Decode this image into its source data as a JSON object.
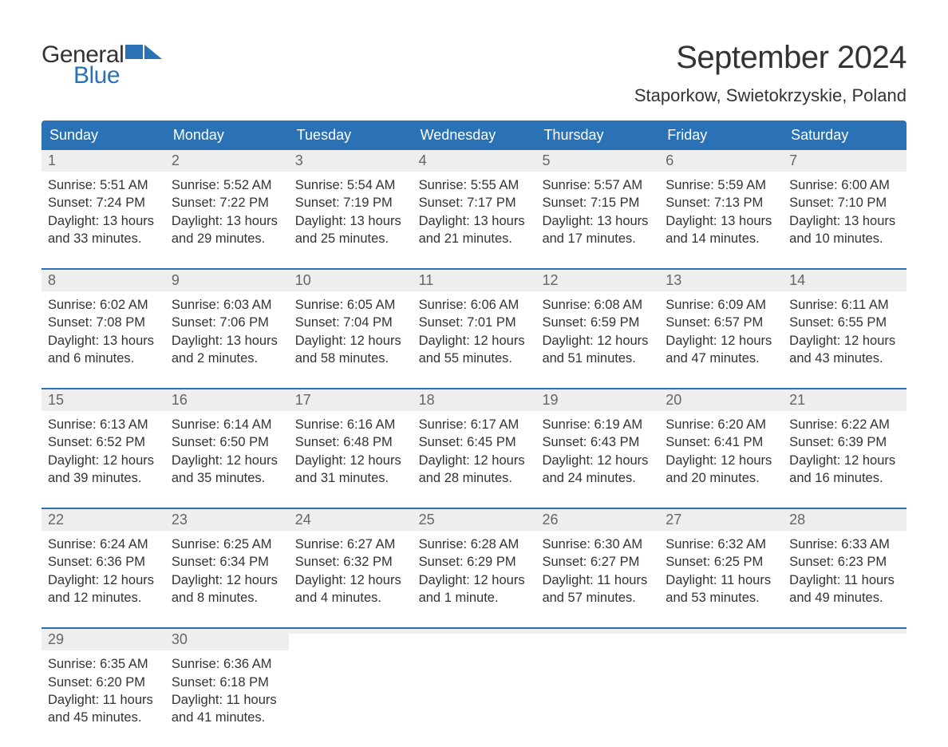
{
  "brand": {
    "line1": "General",
    "line2": "Blue",
    "accent": "#2a72b5"
  },
  "title": "September 2024",
  "location": "Staporkow, Swietokrzyskie, Poland",
  "colors": {
    "header_bg": "#2a72b5",
    "header_text": "#ffffff",
    "daynum_bg": "#eeeeee",
    "daynum_text": "#666666",
    "body_text": "#333333",
    "week_border": "#2a72b5",
    "page_bg": "#ffffff"
  },
  "typography": {
    "title_fontsize": 40,
    "location_fontsize": 22,
    "weekday_fontsize": 18,
    "daynum_fontsize": 18,
    "content_fontsize": 16.5,
    "font_family": "Arial"
  },
  "weekdays": [
    "Sunday",
    "Monday",
    "Tuesday",
    "Wednesday",
    "Thursday",
    "Friday",
    "Saturday"
  ],
  "weeks": [
    [
      {
        "n": "1",
        "sunrise": "Sunrise: 5:51 AM",
        "sunset": "Sunset: 7:24 PM",
        "d1": "Daylight: 13 hours",
        "d2": "and 33 minutes."
      },
      {
        "n": "2",
        "sunrise": "Sunrise: 5:52 AM",
        "sunset": "Sunset: 7:22 PM",
        "d1": "Daylight: 13 hours",
        "d2": "and 29 minutes."
      },
      {
        "n": "3",
        "sunrise": "Sunrise: 5:54 AM",
        "sunset": "Sunset: 7:19 PM",
        "d1": "Daylight: 13 hours",
        "d2": "and 25 minutes."
      },
      {
        "n": "4",
        "sunrise": "Sunrise: 5:55 AM",
        "sunset": "Sunset: 7:17 PM",
        "d1": "Daylight: 13 hours",
        "d2": "and 21 minutes."
      },
      {
        "n": "5",
        "sunrise": "Sunrise: 5:57 AM",
        "sunset": "Sunset: 7:15 PM",
        "d1": "Daylight: 13 hours",
        "d2": "and 17 minutes."
      },
      {
        "n": "6",
        "sunrise": "Sunrise: 5:59 AM",
        "sunset": "Sunset: 7:13 PM",
        "d1": "Daylight: 13 hours",
        "d2": "and 14 minutes."
      },
      {
        "n": "7",
        "sunrise": "Sunrise: 6:00 AM",
        "sunset": "Sunset: 7:10 PM",
        "d1": "Daylight: 13 hours",
        "d2": "and 10 minutes."
      }
    ],
    [
      {
        "n": "8",
        "sunrise": "Sunrise: 6:02 AM",
        "sunset": "Sunset: 7:08 PM",
        "d1": "Daylight: 13 hours",
        "d2": "and 6 minutes."
      },
      {
        "n": "9",
        "sunrise": "Sunrise: 6:03 AM",
        "sunset": "Sunset: 7:06 PM",
        "d1": "Daylight: 13 hours",
        "d2": "and 2 minutes."
      },
      {
        "n": "10",
        "sunrise": "Sunrise: 6:05 AM",
        "sunset": "Sunset: 7:04 PM",
        "d1": "Daylight: 12 hours",
        "d2": "and 58 minutes."
      },
      {
        "n": "11",
        "sunrise": "Sunrise: 6:06 AM",
        "sunset": "Sunset: 7:01 PM",
        "d1": "Daylight: 12 hours",
        "d2": "and 55 minutes."
      },
      {
        "n": "12",
        "sunrise": "Sunrise: 6:08 AM",
        "sunset": "Sunset: 6:59 PM",
        "d1": "Daylight: 12 hours",
        "d2": "and 51 minutes."
      },
      {
        "n": "13",
        "sunrise": "Sunrise: 6:09 AM",
        "sunset": "Sunset: 6:57 PM",
        "d1": "Daylight: 12 hours",
        "d2": "and 47 minutes."
      },
      {
        "n": "14",
        "sunrise": "Sunrise: 6:11 AM",
        "sunset": "Sunset: 6:55 PM",
        "d1": "Daylight: 12 hours",
        "d2": "and 43 minutes."
      }
    ],
    [
      {
        "n": "15",
        "sunrise": "Sunrise: 6:13 AM",
        "sunset": "Sunset: 6:52 PM",
        "d1": "Daylight: 12 hours",
        "d2": "and 39 minutes."
      },
      {
        "n": "16",
        "sunrise": "Sunrise: 6:14 AM",
        "sunset": "Sunset: 6:50 PM",
        "d1": "Daylight: 12 hours",
        "d2": "and 35 minutes."
      },
      {
        "n": "17",
        "sunrise": "Sunrise: 6:16 AM",
        "sunset": "Sunset: 6:48 PM",
        "d1": "Daylight: 12 hours",
        "d2": "and 31 minutes."
      },
      {
        "n": "18",
        "sunrise": "Sunrise: 6:17 AM",
        "sunset": "Sunset: 6:45 PM",
        "d1": "Daylight: 12 hours",
        "d2": "and 28 minutes."
      },
      {
        "n": "19",
        "sunrise": "Sunrise: 6:19 AM",
        "sunset": "Sunset: 6:43 PM",
        "d1": "Daylight: 12 hours",
        "d2": "and 24 minutes."
      },
      {
        "n": "20",
        "sunrise": "Sunrise: 6:20 AM",
        "sunset": "Sunset: 6:41 PM",
        "d1": "Daylight: 12 hours",
        "d2": "and 20 minutes."
      },
      {
        "n": "21",
        "sunrise": "Sunrise: 6:22 AM",
        "sunset": "Sunset: 6:39 PM",
        "d1": "Daylight: 12 hours",
        "d2": "and 16 minutes."
      }
    ],
    [
      {
        "n": "22",
        "sunrise": "Sunrise: 6:24 AM",
        "sunset": "Sunset: 6:36 PM",
        "d1": "Daylight: 12 hours",
        "d2": "and 12 minutes."
      },
      {
        "n": "23",
        "sunrise": "Sunrise: 6:25 AM",
        "sunset": "Sunset: 6:34 PM",
        "d1": "Daylight: 12 hours",
        "d2": "and 8 minutes."
      },
      {
        "n": "24",
        "sunrise": "Sunrise: 6:27 AM",
        "sunset": "Sunset: 6:32 PM",
        "d1": "Daylight: 12 hours",
        "d2": "and 4 minutes."
      },
      {
        "n": "25",
        "sunrise": "Sunrise: 6:28 AM",
        "sunset": "Sunset: 6:29 PM",
        "d1": "Daylight: 12 hours",
        "d2": "and 1 minute."
      },
      {
        "n": "26",
        "sunrise": "Sunrise: 6:30 AM",
        "sunset": "Sunset: 6:27 PM",
        "d1": "Daylight: 11 hours",
        "d2": "and 57 minutes."
      },
      {
        "n": "27",
        "sunrise": "Sunrise: 6:32 AM",
        "sunset": "Sunset: 6:25 PM",
        "d1": "Daylight: 11 hours",
        "d2": "and 53 minutes."
      },
      {
        "n": "28",
        "sunrise": "Sunrise: 6:33 AM",
        "sunset": "Sunset: 6:23 PM",
        "d1": "Daylight: 11 hours",
        "d2": "and 49 minutes."
      }
    ],
    [
      {
        "n": "29",
        "sunrise": "Sunrise: 6:35 AM",
        "sunset": "Sunset: 6:20 PM",
        "d1": "Daylight: 11 hours",
        "d2": "and 45 minutes."
      },
      {
        "n": "30",
        "sunrise": "Sunrise: 6:36 AM",
        "sunset": "Sunset: 6:18 PM",
        "d1": "Daylight: 11 hours",
        "d2": "and 41 minutes."
      },
      {
        "empty": true
      },
      {
        "empty": true
      },
      {
        "empty": true
      },
      {
        "empty": true
      },
      {
        "empty": true
      }
    ]
  ]
}
